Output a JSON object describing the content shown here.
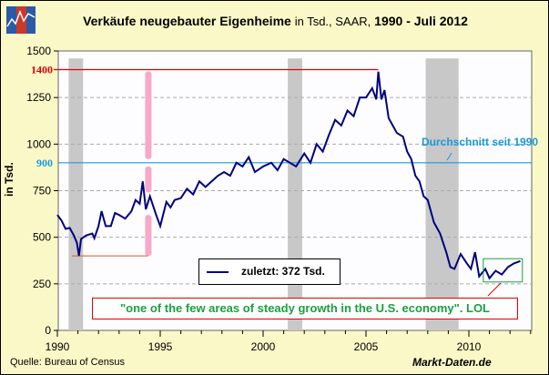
{
  "chart_data": {
    "type": "line",
    "title": "Verkäufe neugebauter Eigenheime",
    "title_units": "in Tsd., SAAR,",
    "title_period": "1990 - Juli 2012",
    "ylabel": "in Tsd.",
    "xlabel": "",
    "xlim": [
      1990,
      2013.1
    ],
    "ylim": [
      0,
      1500
    ],
    "yticks": [
      0,
      250,
      500,
      750,
      1000,
      1250,
      1500
    ],
    "xticks": [
      1990,
      1995,
      2000,
      2005,
      2010
    ],
    "highlight_levels": [
      {
        "value": 1400,
        "label": "1400",
        "color": "#e00000"
      },
      {
        "value": 900,
        "label": "900",
        "color": "#1a9ad8"
      }
    ],
    "recessions": [
      [
        1990.55,
        1991.25
      ],
      [
        2001.2,
        2001.9
      ],
      [
        2007.9,
        2009.5
      ]
    ],
    "series": [
      {
        "name": "zuletzt: 372  Tsd.",
        "color": "#000080",
        "points": [
          [
            1990.0,
            620
          ],
          [
            1990.2,
            590
          ],
          [
            1990.4,
            545
          ],
          [
            1990.6,
            550
          ],
          [
            1990.8,
            510
          ],
          [
            1990.95,
            470
          ],
          [
            1991.05,
            400
          ],
          [
            1991.15,
            490
          ],
          [
            1991.4,
            510
          ],
          [
            1991.7,
            520
          ],
          [
            1991.8,
            495
          ],
          [
            1992.0,
            560
          ],
          [
            1992.15,
            640
          ],
          [
            1992.35,
            560
          ],
          [
            1992.6,
            560
          ],
          [
            1992.8,
            630
          ],
          [
            1993.0,
            620
          ],
          [
            1993.3,
            600
          ],
          [
            1993.6,
            640
          ],
          [
            1993.8,
            700
          ],
          [
            1994.0,
            680
          ],
          [
            1994.15,
            800
          ],
          [
            1994.3,
            650
          ],
          [
            1994.5,
            720
          ],
          [
            1994.8,
            620
          ],
          [
            1995.0,
            560
          ],
          [
            1995.3,
            690
          ],
          [
            1995.5,
            660
          ],
          [
            1995.7,
            700
          ],
          [
            1996.0,
            710
          ],
          [
            1996.3,
            760
          ],
          [
            1996.6,
            730
          ],
          [
            1996.9,
            800
          ],
          [
            1997.2,
            770
          ],
          [
            1997.5,
            800
          ],
          [
            1997.8,
            830
          ],
          [
            1998.1,
            850
          ],
          [
            1998.4,
            830
          ],
          [
            1998.7,
            900
          ],
          [
            1999.0,
            880
          ],
          [
            1999.3,
            930
          ],
          [
            1999.6,
            850
          ],
          [
            2000.0,
            880
          ],
          [
            2000.4,
            900
          ],
          [
            2000.7,
            860
          ],
          [
            2001.0,
            920
          ],
          [
            2001.3,
            900
          ],
          [
            2001.6,
            880
          ],
          [
            2002.0,
            950
          ],
          [
            2002.3,
            900
          ],
          [
            2002.6,
            1000
          ],
          [
            2002.9,
            960
          ],
          [
            2003.2,
            1050
          ],
          [
            2003.5,
            1130
          ],
          [
            2003.8,
            1100
          ],
          [
            2004.1,
            1180
          ],
          [
            2004.4,
            1150
          ],
          [
            2004.7,
            1250
          ],
          [
            2005.0,
            1250
          ],
          [
            2005.3,
            1300
          ],
          [
            2005.5,
            1240
          ],
          [
            2005.6,
            1389
          ],
          [
            2005.75,
            1240
          ],
          [
            2005.9,
            1290
          ],
          [
            2006.1,
            1140
          ],
          [
            2006.3,
            1100
          ],
          [
            2006.5,
            1060
          ],
          [
            2006.8,
            1040
          ],
          [
            2007.0,
            960
          ],
          [
            2007.2,
            920
          ],
          [
            2007.4,
            830
          ],
          [
            2007.6,
            800
          ],
          [
            2007.8,
            720
          ],
          [
            2008.0,
            700
          ],
          [
            2008.3,
            580
          ],
          [
            2008.6,
            520
          ],
          [
            2008.9,
            420
          ],
          [
            2009.1,
            340
          ],
          [
            2009.3,
            330
          ],
          [
            2009.6,
            410
          ],
          [
            2009.9,
            360
          ],
          [
            2010.1,
            330
          ],
          [
            2010.3,
            420
          ],
          [
            2010.5,
            290
          ],
          [
            2010.8,
            330
          ],
          [
            2011.0,
            280
          ],
          [
            2011.3,
            320
          ],
          [
            2011.6,
            300
          ],
          [
            2011.9,
            340
          ],
          [
            2012.2,
            360
          ],
          [
            2012.5,
            372
          ]
        ]
      }
    ],
    "legend": {
      "label": "zuletzt: 372  Tsd.",
      "position": "bottom-center"
    },
    "annotations": {
      "average": "Durchschnitt seit 1990",
      "quote": "\"one of the few areas of steady growth in the U.S. economy\". LOL"
    }
  },
  "footer": {
    "source": "Quelle: Bureau of Census",
    "brand": "Markt-Daten.de"
  }
}
